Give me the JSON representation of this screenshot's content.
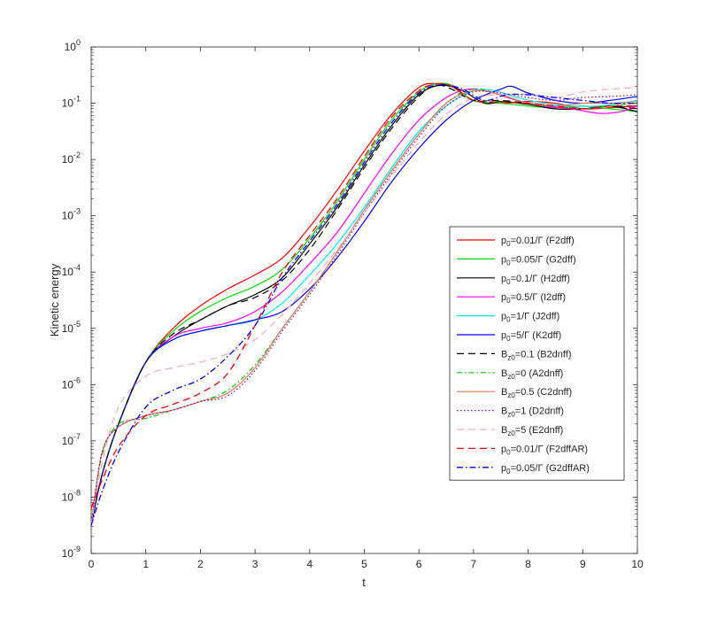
{
  "chart_data": {
    "type": "line",
    "title": "",
    "xlabel": "t",
    "ylabel": "Kinetic energy",
    "xlim": [
      0,
      10
    ],
    "ylim_log10": [
      -9,
      0
    ],
    "yscale": "log",
    "x_ticks": [
      "0",
      "1",
      "2",
      "3",
      "4",
      "5",
      "6",
      "7",
      "8",
      "9",
      "10"
    ],
    "y_ticks": [
      {
        "base": "10",
        "exp": "-9"
      },
      {
        "base": "10",
        "exp": "-8"
      },
      {
        "base": "10",
        "exp": "-7"
      },
      {
        "base": "10",
        "exp": "-6"
      },
      {
        "base": "10",
        "exp": "-5"
      },
      {
        "base": "10",
        "exp": "-4"
      },
      {
        "base": "10",
        "exp": "-3"
      },
      {
        "base": "10",
        "exp": "-2"
      },
      {
        "base": "10",
        "exp": "-1"
      },
      {
        "base": "10",
        "exp": "0"
      }
    ],
    "legend_position": "right-middle",
    "series": [
      {
        "name": "F2dff",
        "label_main": "p",
        "label_sub": "0",
        "label_rest": "=0.01/Γ (F2dff)",
        "color": "#ff0000",
        "dash": "",
        "width": 1.2,
        "t": [
          0,
          0.2,
          0.5,
          1,
          1.5,
          2,
          2.5,
          3,
          3.5,
          4,
          4.5,
          5,
          5.5,
          6,
          6.3,
          6.6,
          7,
          7.5,
          8,
          8.5,
          9,
          9.5,
          10
        ],
        "logE": [
          -8.5,
          -7.6,
          -6.7,
          -5.6,
          -5,
          -4.6,
          -4.3,
          -4.05,
          -3.75,
          -3.2,
          -2.55,
          -1.85,
          -1.2,
          -0.72,
          -0.65,
          -0.7,
          -0.95,
          -1,
          -0.97,
          -1.0,
          -1.1,
          -1.08,
          -1.05
        ]
      },
      {
        "name": "G2dff",
        "label_main": "p",
        "label_sub": "0",
        "label_rest": "=0.05/Γ (G2dff)",
        "color": "#00dd00",
        "dash": "",
        "width": 1.2,
        "t": [
          0,
          0.2,
          0.5,
          1,
          1.5,
          2,
          2.5,
          3,
          3.5,
          4,
          4.5,
          5,
          5.5,
          6,
          6.3,
          6.6,
          7,
          7.5,
          8,
          8.5,
          9,
          9.5,
          10
        ],
        "logE": [
          -8.5,
          -7.6,
          -6.7,
          -5.6,
          -5.05,
          -4.7,
          -4.45,
          -4.25,
          -3.95,
          -3.4,
          -2.75,
          -2.0,
          -1.3,
          -0.8,
          -0.66,
          -0.68,
          -0.95,
          -1.0,
          -1.05,
          -1.08,
          -1.05,
          -1.1,
          -1.15
        ]
      },
      {
        "name": "H2dff",
        "label_main": "p",
        "label_sub": "0",
        "label_rest": "=0.1/Γ (H2dff)",
        "color": "#000000",
        "dash": "",
        "width": 1.2,
        "t": [
          0,
          0.2,
          0.5,
          1,
          1.5,
          2,
          2.5,
          3,
          3.5,
          4,
          4.5,
          5,
          5.5,
          6,
          6.4,
          6.8,
          7.2,
          7.5,
          8,
          8.5,
          9,
          9.5,
          10
        ],
        "logE": [
          -8.5,
          -7.6,
          -6.7,
          -5.6,
          -5.15,
          -4.85,
          -4.6,
          -4.4,
          -4.1,
          -3.5,
          -2.85,
          -2.1,
          -1.4,
          -0.85,
          -0.68,
          -0.78,
          -1.0,
          -0.97,
          -1.02,
          -1.1,
          -1.1,
          -1.05,
          -1.15
        ]
      },
      {
        "name": "I2dff",
        "label_main": "p",
        "label_sub": "0",
        "label_rest": "=0.5/Γ (I2dff)",
        "color": "#ff00ff",
        "dash": "",
        "width": 1.2,
        "t": [
          0,
          0.2,
          0.5,
          1,
          1.5,
          2,
          2.5,
          3,
          3.5,
          4,
          4.5,
          5,
          5.5,
          6,
          6.5,
          6.9,
          7.3,
          7.8,
          8.3,
          8.8,
          9.3,
          9.7,
          10
        ],
        "logE": [
          -8.5,
          -7.6,
          -6.7,
          -5.6,
          -5.15,
          -5.0,
          -4.9,
          -4.7,
          -4.35,
          -3.85,
          -3.3,
          -2.6,
          -1.9,
          -1.3,
          -0.9,
          -0.75,
          -0.8,
          -0.95,
          -1.05,
          -1.1,
          -1.18,
          -1.15,
          -1.05
        ]
      },
      {
        "name": "J2dff",
        "label_main": "p",
        "label_sub": "0",
        "label_rest": "=1/Γ (J2dff)",
        "color": "#00eeee",
        "dash": "",
        "width": 1.2,
        "t": [
          0,
          0.2,
          0.5,
          1,
          1.5,
          2,
          2.5,
          3,
          3.5,
          4,
          4.5,
          5,
          5.5,
          6,
          6.5,
          7,
          7.4,
          7.8,
          8.3,
          8.8,
          9.3,
          9.7,
          10
        ],
        "logE": [
          -8.5,
          -7.6,
          -6.7,
          -5.6,
          -5.2,
          -5.05,
          -4.95,
          -4.85,
          -4.55,
          -4.05,
          -3.5,
          -2.85,
          -2.15,
          -1.5,
          -1.05,
          -0.78,
          -0.78,
          -0.9,
          -1.0,
          -1.05,
          -1.05,
          -1.0,
          -0.95
        ]
      },
      {
        "name": "K2dff",
        "label_main": "p",
        "label_sub": "0",
        "label_rest": "=5/Γ (K2dff)",
        "color": "#0000ff",
        "dash": "",
        "width": 1.2,
        "t": [
          0,
          0.2,
          0.5,
          1,
          1.5,
          2,
          2.5,
          3,
          3.5,
          4,
          4.5,
          5,
          5.5,
          6,
          6.5,
          7,
          7.5,
          7.7,
          8,
          8.5,
          9,
          9.5,
          10
        ],
        "logE": [
          -8.5,
          -7.6,
          -6.7,
          -5.6,
          -5.2,
          -5.05,
          -4.95,
          -4.85,
          -4.7,
          -4.3,
          -3.75,
          -3.1,
          -2.4,
          -1.8,
          -1.3,
          -0.95,
          -0.75,
          -0.7,
          -0.82,
          -0.95,
          -1.0,
          -0.95,
          -0.88
        ]
      },
      {
        "name": "B2dnff",
        "label_main": "B",
        "label_sub": "z0",
        "label_rest": "=0.1 (B2dnff)",
        "color": "#000000",
        "dash": "8,5",
        "width": 1.2,
        "t": [
          0,
          0.2,
          0.5,
          1,
          1.5,
          2,
          2.5,
          3,
          3.5,
          4,
          4.5,
          5,
          5.5,
          6,
          6.3,
          6.6,
          7,
          7.5,
          8,
          8.5,
          9,
          9.5,
          10
        ],
        "logE": [
          -8.5,
          -7.6,
          -6.7,
          -5.6,
          -5.1,
          -4.85,
          -4.6,
          -4.45,
          -4.15,
          -3.6,
          -2.9,
          -2.15,
          -1.45,
          -0.88,
          -0.68,
          -0.75,
          -0.95,
          -0.95,
          -1.0,
          -1.05,
          -1.1,
          -1.05,
          -1.1
        ]
      },
      {
        "name": "A2dnff",
        "label_main": "B",
        "label_sub": "z0",
        "label_rest": "=0 (A2dnff)",
        "color": "#00cc00",
        "dash": "6,3,1.5,3",
        "width": 1.2,
        "t": [
          0,
          0.2,
          0.5,
          1,
          1.5,
          2,
          2.5,
          3,
          3.5,
          4,
          4.5,
          5,
          5.5,
          6,
          6.5,
          7,
          7.5,
          8,
          8.5,
          9,
          9.5,
          10
        ],
        "logE": [
          -8.5,
          -7.25,
          -6.7,
          -6.6,
          -6.45,
          -6.3,
          -6.1,
          -5.65,
          -5.0,
          -4.35,
          -3.65,
          -2.9,
          -2.2,
          -1.55,
          -1.0,
          -0.75,
          -0.85,
          -1.0,
          -1.05,
          -1.1,
          -1.05,
          -1.0
        ]
      },
      {
        "name": "C2dnff",
        "label_main": "B",
        "label_sub": "z0",
        "label_rest": "=0.5 (C2dnff)",
        "color": "#d9785a",
        "dash": "",
        "width": 1.2,
        "t": [
          0,
          0.2,
          0.5,
          1,
          1.5,
          2,
          2.5,
          3,
          3.5,
          4,
          4.5,
          5,
          5.5,
          6,
          6.5,
          7,
          7.5,
          8,
          8.5,
          9,
          9.5,
          10
        ],
        "logE": [
          -8.5,
          -7.2,
          -6.75,
          -6.55,
          -6.45,
          -6.3,
          -6.15,
          -5.7,
          -5.0,
          -4.35,
          -3.65,
          -2.9,
          -2.2,
          -1.55,
          -1.0,
          -0.78,
          -0.85,
          -1.0,
          -1.05,
          -1.0,
          -1.0,
          -0.97
        ]
      },
      {
        "name": "D2dnff",
        "label_main": "B",
        "label_sub": "z0",
        "label_rest": "=1 (D2dnff)",
        "color": "#990099",
        "dash": "1.5,2.5",
        "width": 1.2,
        "t": [
          0,
          0.2,
          0.5,
          1,
          1.5,
          2,
          2.5,
          3,
          3.5,
          4,
          4.5,
          5,
          5.5,
          6,
          6.5,
          7,
          7.5,
          8,
          8.5,
          9,
          9.5,
          10
        ],
        "logE": [
          -8.5,
          -7.2,
          -6.75,
          -6.55,
          -6.45,
          -6.3,
          -6.2,
          -5.75,
          -5.05,
          -4.4,
          -3.7,
          -2.95,
          -2.25,
          -1.6,
          -1.05,
          -0.8,
          -0.82,
          -0.9,
          -0.95,
          -0.9,
          -0.88,
          -0.85
        ]
      },
      {
        "name": "E2dnff",
        "label_main": "B",
        "label_sub": "z0",
        "label_rest": "=5 (E2dnff)",
        "color": "#f4a7c6",
        "dash": "8,5",
        "width": 1.2,
        "t": [
          0,
          0.2,
          0.5,
          1,
          1.5,
          2,
          2.5,
          3,
          3.5,
          4,
          4.5,
          5,
          5.5,
          6,
          6.5,
          7,
          7.5,
          8,
          8.5,
          9,
          9.5,
          10
        ],
        "logE": [
          -8.5,
          -7.4,
          -6.4,
          -5.85,
          -5.7,
          -5.6,
          -5.45,
          -5.2,
          -4.75,
          -4.2,
          -3.6,
          -2.95,
          -2.3,
          -1.7,
          -1.2,
          -0.9,
          -0.85,
          -0.85,
          -0.9,
          -0.8,
          -0.75,
          -0.72
        ]
      },
      {
        "name": "F2dffAR",
        "label_main": "p",
        "label_sub": "0",
        "label_rest": "=0.01/Γ (F2dffAR)",
        "color": "#ff0000",
        "dash": "8,5",
        "width": 1.3,
        "t": [
          0,
          0.2,
          0.5,
          1,
          1.5,
          2,
          2.5,
          3,
          3.5,
          4,
          4.5,
          5,
          5.5,
          6,
          6.3,
          6.6,
          7,
          7.5,
          8,
          8.5,
          9,
          9.5,
          10
        ],
        "logE": [
          -8.2,
          -7.7,
          -7.1,
          -6.55,
          -6.35,
          -6.15,
          -5.8,
          -4.95,
          -4.0,
          -3.35,
          -2.7,
          -1.95,
          -1.25,
          -0.78,
          -0.66,
          -0.7,
          -0.95,
          -0.98,
          -1.0,
          -1.05,
          -1.1,
          -1.05,
          -1.05
        ]
      },
      {
        "name": "G2dffAR",
        "label_main": "p",
        "label_sub": "0",
        "label_rest": "=0.05/Γ (G2dffAR)",
        "color": "#0000ff",
        "dash": "7,3,1.5,3",
        "width": 1.3,
        "t": [
          0,
          0.2,
          0.5,
          1,
          1.5,
          2,
          2.5,
          3,
          3.5,
          4,
          4.5,
          5,
          5.5,
          6,
          6.4,
          6.8,
          7.2,
          7.6,
          8,
          8.5,
          9,
          9.5,
          10
        ],
        "logE": [
          -8.5,
          -7.9,
          -7.2,
          -6.4,
          -6.1,
          -5.9,
          -5.5,
          -4.95,
          -4.1,
          -3.45,
          -2.8,
          -2.05,
          -1.35,
          -0.82,
          -0.67,
          -0.75,
          -0.95,
          -0.85,
          -0.85,
          -0.9,
          -0.95,
          -1.0,
          -1.0
        ]
      }
    ]
  }
}
